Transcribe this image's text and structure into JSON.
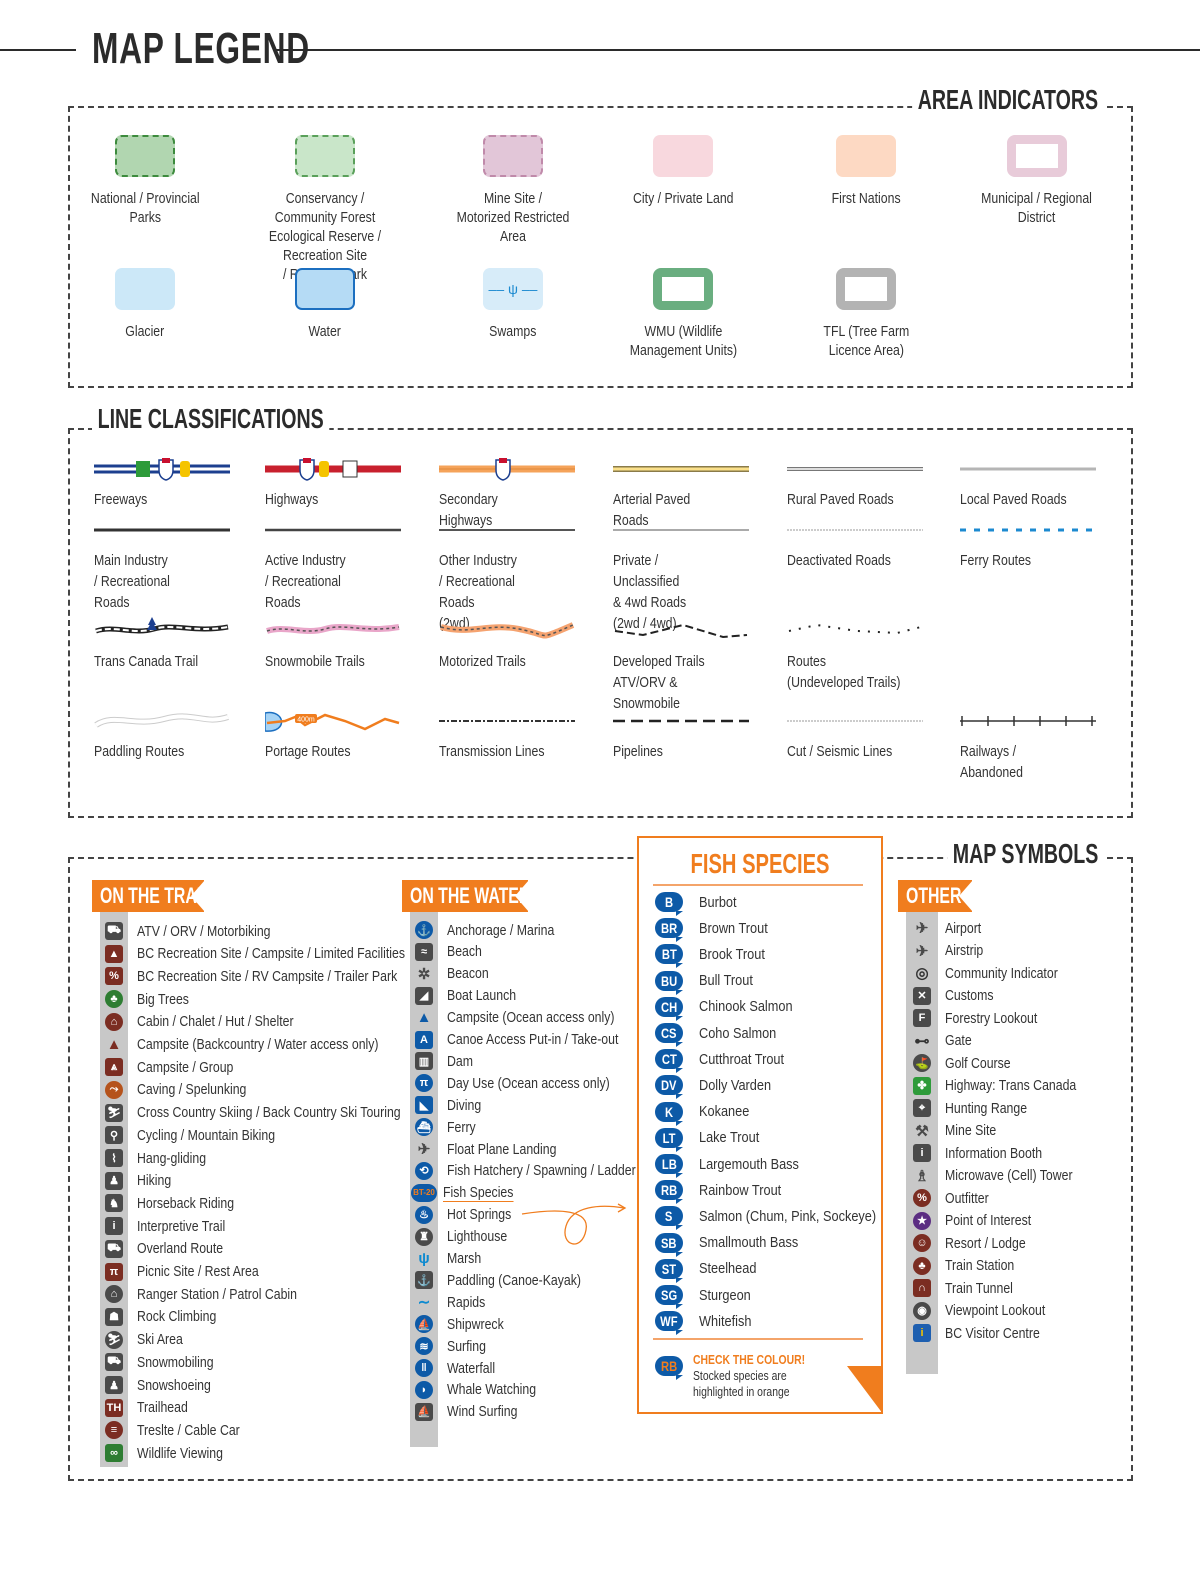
{
  "title": "MAP LEGEND",
  "area_indicators": {
    "heading": "AREA INDICATORS",
    "items": [
      {
        "label": "National / Provincial\nParks",
        "fill": "#b1d6b0",
        "border": "#3d8b3d",
        "style": "dashdot"
      },
      {
        "label": "Conservancy / Community Forest\nEcological Reserve / Recreation Site\n/ Regional Park",
        "fill": "#c9e6c9",
        "border": "#5aa05a",
        "style": "dashed"
      },
      {
        "label": "Mine Site /\nMotorized Restricted Area",
        "fill": "#e2c6d8",
        "border": "#c08aaa",
        "style": "dashed"
      },
      {
        "label": "City / Private Land",
        "fill": "#f8d8de",
        "border": "none",
        "style": "solid"
      },
      {
        "label": "First Nations",
        "fill": "#fdd9c3",
        "border": "none",
        "style": "solid"
      },
      {
        "label": "Municipal / Regional\nDistrict",
        "fill": "#fff",
        "border": "#e8cbd9",
        "style": "frame"
      },
      {
        "label": "Glacier",
        "fill": "#cce8f8",
        "border": "none",
        "style": "solid"
      },
      {
        "label": "Water",
        "fill": "#b5dbf5",
        "border": "#1c6fc0",
        "style": "solid"
      },
      {
        "label": "Swamps",
        "fill": "#d7ecf9",
        "border": "none",
        "style": "swamp"
      },
      {
        "label": "WMU (Wildlife\nManagement Units)",
        "fill": "#fff",
        "border": "#6aae80",
        "style": "frame"
      },
      {
        "label": "TFL (Tree Farm\nLicence Area)",
        "fill": "#fff",
        "border": "#b3b3b3",
        "style": "frame"
      }
    ]
  },
  "line_classifications": {
    "heading": "LINE CLASSIFICATIONS",
    "items": [
      {
        "label": "Freeways",
        "style": "freeway"
      },
      {
        "label": "Highways",
        "style": "highway"
      },
      {
        "label": "Secondary Highways",
        "style": "secondary"
      },
      {
        "label": "Arterial Paved Roads",
        "style": "arterial"
      },
      {
        "label": "Rural Paved Roads",
        "style": "rural"
      },
      {
        "label": "Local Paved Roads",
        "style": "local"
      },
      {
        "label": "Main Industry\n/ Recreational Roads",
        "style": "main"
      },
      {
        "label": "Active Industry\n/ Recreational Roads",
        "style": "active"
      },
      {
        "label": "Other Industry\n/ Recreational Roads\n(2wd)",
        "style": "other"
      },
      {
        "label": "Private / Unclassified\n& 4wd Roads\n(2wd / 4wd)",
        "style": "private"
      },
      {
        "label": "Deactivated Roads",
        "style": "deactivated"
      },
      {
        "label": "Ferry Routes",
        "style": "ferry"
      },
      {
        "label": "Trans Canada Trail",
        "style": "tct"
      },
      {
        "label": "Snowmobile Trails",
        "style": "snowmobile"
      },
      {
        "label": "Motorized Trails",
        "style": "motorized"
      },
      {
        "label": "Developed Trails\nATV/ORV & Snowmobile",
        "style": "developed"
      },
      {
        "label": "Routes\n(Undeveloped Trails)",
        "style": "routes"
      },
      {
        "label": "",
        "style": "none"
      },
      {
        "label": "Paddling Routes",
        "style": "paddling"
      },
      {
        "label": "Portage Routes",
        "style": "portage",
        "tag": "400m"
      },
      {
        "label": "Transmission Lines",
        "style": "transmission"
      },
      {
        "label": "Pipelines",
        "style": "pipeline"
      },
      {
        "label": "Cut / Seismic Lines",
        "style": "cut"
      },
      {
        "label": "Railways / Abandoned",
        "style": "railway"
      }
    ]
  },
  "map_symbols": {
    "heading": "MAP SYMBOLS",
    "on_the_trail": {
      "heading": "ON THE TRAIL",
      "items": [
        {
          "label": "ATV / ORV / Motorbiking",
          "icon": "atv-icon",
          "color": "#4a4a4a",
          "g": "⛟"
        },
        {
          "label": "BC Recreation Site / Campsite / Limited Facilities",
          "icon": "rec-site-icon",
          "color": "#7b2d22",
          "g": "▲"
        },
        {
          "label": "BC Recreation Site / RV Campsite / Trailer Park",
          "icon": "rv-icon",
          "color": "#7b2d22",
          "g": "%"
        },
        {
          "label": "Big Trees",
          "icon": "tree-icon",
          "color": "#2e7d32",
          "g": "♣",
          "round": true
        },
        {
          "label": "Cabin / Chalet / Hut / Shelter",
          "icon": "cabin-icon",
          "color": "#7b2d22",
          "g": "⌂",
          "round": true
        },
        {
          "label": "Campsite (Backcountry / Water access only)",
          "icon": "tent-icon",
          "color": "transparent",
          "g": "▲",
          "fg": "#7b2d22"
        },
        {
          "label": "Campsite / Group",
          "icon": "group-campsite-icon",
          "color": "#7b2d22",
          "g": "⩓"
        },
        {
          "label": "Caving / Spelunking",
          "icon": "caving-icon",
          "color": "#b5531c",
          "g": "⤳",
          "round": true
        },
        {
          "label": "Cross Country Skiing / Back Country Ski Touring",
          "icon": "skiing-icon",
          "color": "#4a4a4a",
          "g": "⛷"
        },
        {
          "label": "Cycling / Mountain Biking",
          "icon": "cycling-icon",
          "color": "#4a4a4a",
          "g": "⚲"
        },
        {
          "label": "Hang-gliding",
          "icon": "hang-gliding-icon",
          "color": "#4a4a4a",
          "g": "⌇"
        },
        {
          "label": "Hiking",
          "icon": "hiking-icon",
          "color": "#4a4a4a",
          "g": "♟"
        },
        {
          "label": "Horseback Riding",
          "icon": "horse-icon",
          "color": "#4a4a4a",
          "g": "♞"
        },
        {
          "label": "Interpretive Trail",
          "icon": "interpretive-icon",
          "color": "#4a4a4a",
          "g": "i"
        },
        {
          "label": "Overland Route",
          "icon": "overland-icon",
          "color": "#4a4a4a",
          "g": "⛟"
        },
        {
          "label": "Picnic Site / Rest Area",
          "icon": "picnic-icon",
          "color": "#7b2d22",
          "g": "π"
        },
        {
          "label": "Ranger Station / Patrol Cabin",
          "icon": "ranger-icon",
          "color": "#4a4a4a",
          "g": "⌂",
          "round": true
        },
        {
          "label": "Rock Climbing",
          "icon": "climbing-icon",
          "color": "#4a4a4a",
          "g": "☗"
        },
        {
          "label": "Ski Area",
          "icon": "ski-area-icon",
          "color": "#4a4a4a",
          "g": "⛷",
          "round": true
        },
        {
          "label": "Snowmobiling",
          "icon": "snowmobile-icon",
          "color": "#4a4a4a",
          "g": "⛟"
        },
        {
          "label": "Snowshoeing",
          "icon": "snowshoe-icon",
          "color": "#4a4a4a",
          "g": "♟"
        },
        {
          "label": "Trailhead",
          "icon": "trailhead-icon",
          "color": "#7b2d22",
          "g": "TH"
        },
        {
          "label": "Treslte / Cable Car",
          "icon": "trestle-icon",
          "color": "#7b2d22",
          "g": "≡",
          "round": true
        },
        {
          "label": "Wildlife Viewing",
          "icon": "binoculars-icon",
          "color": "#2e7d32",
          "g": "∞"
        }
      ]
    },
    "on_the_water": {
      "heading": "ON THE WATER",
      "items": [
        {
          "label": "Anchorage / Marina",
          "icon": "anchor-icon",
          "color": "#0d5aa7",
          "g": "⚓",
          "round": true
        },
        {
          "label": "Beach",
          "icon": "beach-icon",
          "color": "#4a4a4a",
          "g": "≈"
        },
        {
          "label": "Beacon",
          "icon": "beacon-icon",
          "color": "transparent",
          "g": "✲",
          "fg": "#4a4a4a"
        },
        {
          "label": "Boat Launch",
          "icon": "boat-launch-icon",
          "color": "#4a4a4a",
          "g": "◢"
        },
        {
          "label": "Campsite (Ocean access only)",
          "icon": "ocean-campsite-icon",
          "color": "transparent",
          "g": "▲",
          "fg": "#0d5aa7"
        },
        {
          "label": "Canoe Access Put-in / Take-out",
          "icon": "canoe-access-icon",
          "color": "#0d5aa7",
          "g": "A"
        },
        {
          "label": "Dam",
          "icon": "dam-icon",
          "color": "#4a4a4a",
          "g": "▥"
        },
        {
          "label": "Day Use (Ocean access only)",
          "icon": "day-use-icon",
          "color": "#0d5aa7",
          "g": "π",
          "round": true
        },
        {
          "label": "Diving",
          "icon": "diving-icon",
          "color": "#0d5aa7",
          "g": "◣"
        },
        {
          "label": "Ferry",
          "icon": "ferry-icon",
          "color": "#0d5aa7",
          "g": "⛴",
          "round": true
        },
        {
          "label": "Float Plane Landing",
          "icon": "float-plane-icon",
          "color": "transparent",
          "g": "✈",
          "fg": "#4a4a4a"
        },
        {
          "label": "Fish Hatchery / Spawning / Ladder",
          "icon": "fish-hatchery-icon",
          "color": "#0d5aa7",
          "g": "⟲",
          "round": true
        },
        {
          "label": "Fish Species",
          "icon": "fish-species-icon",
          "color": "#0d5aa7",
          "g": "BT",
          "tag": "BT-20",
          "underline": "#f07d1e"
        },
        {
          "label": "Hot Springs",
          "icon": "hot-springs-icon",
          "color": "#0d5aa7",
          "g": "♨",
          "round": true
        },
        {
          "label": "Lighthouse",
          "icon": "lighthouse-icon",
          "color": "#4a4a4a",
          "g": "♜",
          "round": true
        },
        {
          "label": "Marsh",
          "icon": "marsh-icon",
          "color": "transparent",
          "g": "ψ",
          "fg": "#0d8ad0"
        },
        {
          "label": "Paddling (Canoe-Kayak)",
          "icon": "paddling-icon",
          "color": "#4a4a4a",
          "g": "⚓"
        },
        {
          "label": "Rapids",
          "icon": "rapids-icon",
          "color": "transparent",
          "g": "∼",
          "fg": "#0d8ad0"
        },
        {
          "label": "Shipwreck",
          "icon": "shipwreck-icon",
          "color": "#0d5aa7",
          "g": "⛵",
          "round": true
        },
        {
          "label": "Surfing",
          "icon": "surfing-icon",
          "color": "#0d5aa7",
          "g": "≋",
          "round": true
        },
        {
          "label": "Waterfall",
          "icon": "waterfall-icon",
          "color": "#0d5aa7",
          "g": "‖",
          "round": true
        },
        {
          "label": "Whale Watching",
          "icon": "whale-icon",
          "color": "#0d5aa7",
          "g": "◗",
          "round": true
        },
        {
          "label": "Wind Surfing",
          "icon": "wind-surfing-icon",
          "color": "#4a4a4a",
          "g": "⛵"
        }
      ]
    },
    "fish_species": {
      "heading": "FISH SPECIES",
      "items": [
        {
          "code": "B",
          "name": "Burbot"
        },
        {
          "code": "BR",
          "name": "Brown Trout"
        },
        {
          "code": "BT",
          "name": "Brook Trout"
        },
        {
          "code": "BU",
          "name": "Bull Trout"
        },
        {
          "code": "CH",
          "name": "Chinook Salmon"
        },
        {
          "code": "CS",
          "name": "Coho Salmon"
        },
        {
          "code": "CT",
          "name": "Cutthroat Trout"
        },
        {
          "code": "DV",
          "name": "Dolly Varden"
        },
        {
          "code": "K",
          "name": "Kokanee"
        },
        {
          "code": "LT",
          "name": "Lake Trout"
        },
        {
          "code": "LB",
          "name": "Largemouth Bass"
        },
        {
          "code": "RB",
          "name": "Rainbow Trout"
        },
        {
          "code": "S",
          "name": "Salmon (Chum, Pink, Sockeye)"
        },
        {
          "code": "SB",
          "name": "Smallmouth Bass"
        },
        {
          "code": "ST",
          "name": "Steelhead"
        },
        {
          "code": "SG",
          "name": "Sturgeon"
        },
        {
          "code": "WF",
          "name": "Whitefish"
        }
      ],
      "note": {
        "code": "RB",
        "title": "CHECK THE COLOUR!",
        "text1": "Stocked species are",
        "text2": "highlighted in orange"
      },
      "colors": {
        "standard": "#0d5aa7",
        "stocked": "#f07d1e"
      }
    },
    "other": {
      "heading": "OTHER",
      "items": [
        {
          "label": "Airport",
          "icon": "airport-icon",
          "color": "transparent",
          "g": "✈",
          "fg": "#4a4a4a"
        },
        {
          "label": "Airstrip",
          "icon": "airstrip-icon",
          "color": "transparent",
          "g": "✈",
          "fg": "#4a4a4a"
        },
        {
          "label": "Community Indicator",
          "icon": "community-icon",
          "color": "transparent",
          "g": "◎",
          "fg": "#333"
        },
        {
          "label": "Customs",
          "icon": "customs-icon",
          "color": "#4a4a4a",
          "g": "✕"
        },
        {
          "label": "Forestry Lookout",
          "icon": "lookout-icon",
          "color": "#4a4a4a",
          "g": "F"
        },
        {
          "label": "Gate",
          "icon": "gate-icon",
          "color": "transparent",
          "g": "⊷",
          "fg": "#333"
        },
        {
          "label": "Golf Course",
          "icon": "golf-icon",
          "color": "#4a4a4a",
          "g": "⛳",
          "round": true
        },
        {
          "label": "Highway: Trans Canada",
          "icon": "trans-canada-icon",
          "color": "#2e9b3a",
          "g": "✤"
        },
        {
          "label": "Hunting Range",
          "icon": "hunting-icon",
          "color": "#4a4a4a",
          "g": "⌖"
        },
        {
          "label": "Mine Site",
          "icon": "mine-icon",
          "color": "transparent",
          "g": "⚒",
          "fg": "#4a4a4a"
        },
        {
          "label": "Information Booth",
          "icon": "info-icon",
          "color": "#4a4a4a",
          "g": "i"
        },
        {
          "label": "Microwave (Cell) Tower",
          "icon": "tower-icon",
          "color": "transparent",
          "g": "♗",
          "fg": "#4a4a4a"
        },
        {
          "label": "Outfitter",
          "icon": "outfitter-icon",
          "color": "#7b2d22",
          "g": "%",
          "round": true
        },
        {
          "label": "Point of Interest",
          "icon": "star-icon",
          "color": "#5b2d82",
          "g": "★",
          "round": true
        },
        {
          "label": "Resort / Lodge",
          "icon": "resort-icon",
          "color": "#7b2d22",
          "g": "☺",
          "round": true
        },
        {
          "label": "Train Station",
          "icon": "train-station-icon",
          "color": "#7b2d22",
          "g": "♣",
          "round": true
        },
        {
          "label": "Train Tunnel",
          "icon": "tunnel-icon",
          "color": "#7b2d22",
          "g": "∩"
        },
        {
          "label": "Viewpoint Lookout",
          "icon": "viewpoint-icon",
          "color": "#4a4a4a",
          "g": "◉",
          "round": true
        },
        {
          "label": "BC Visitor Centre",
          "icon": "visitor-centre-icon",
          "color": "#1e5fb0",
          "g": "i",
          "fg": "#f5c400"
        }
      ]
    }
  }
}
